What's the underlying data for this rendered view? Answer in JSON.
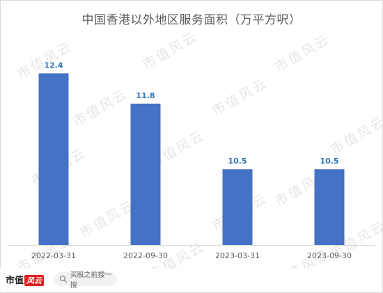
{
  "chart_data": {
    "type": "bar",
    "title": "中国香港以外地区服务面积（万平方呎）",
    "categories": [
      "2022-03-31",
      "2022-09-30",
      "2023-03-31",
      "2023-09-30"
    ],
    "values": [
      12.4,
      11.8,
      10.5,
      10.5
    ],
    "value_labels": [
      "12.4",
      "11.8",
      "10.5",
      "10.5"
    ],
    "xlabel": "",
    "ylabel": "",
    "ylim": [
      9.0,
      12.75
    ],
    "grid": false,
    "legend": "none",
    "bar_color": "#4472c4",
    "label_color": "#2e75b6"
  },
  "watermark": {
    "text": "市值风云"
  },
  "footer": {
    "brand_text": "市值",
    "brand_badge": "风云",
    "search_icon": "search-icon",
    "search_text": "买股之前搜一搜"
  }
}
